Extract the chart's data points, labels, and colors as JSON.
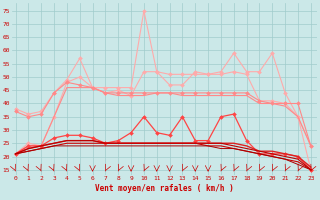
{
  "x": [
    0,
    1,
    2,
    3,
    4,
    5,
    6,
    7,
    8,
    9,
    10,
    11,
    12,
    13,
    14,
    15,
    16,
    17,
    18,
    19,
    20,
    21,
    22,
    23
  ],
  "background_color": "#cbe8e8",
  "grid_color": "#a0cccc",
  "xlabel": "Vent moyen/en rafales ( km/h )",
  "xlabel_color": "#cc0000",
  "yticks": [
    15,
    20,
    25,
    30,
    35,
    40,
    45,
    50,
    55,
    60,
    65,
    70,
    75
  ],
  "ylim": [
    13,
    78
  ],
  "xlim": [
    -0.3,
    23.5
  ],
  "series": [
    {
      "name": "rafales_envelope",
      "color": "#ffaaaa",
      "lw": 0.8,
      "marker": "D",
      "markersize": 2,
      "data": [
        38,
        36,
        37,
        44,
        49,
        57,
        46,
        46,
        46,
        46,
        75,
        52,
        47,
        47,
        52,
        51,
        52,
        59,
        52,
        52,
        59,
        44,
        35,
        15
      ]
    },
    {
      "name": "rafales_lower",
      "color": "#ffaaaa",
      "lw": 0.8,
      "marker": "D",
      "markersize": 2,
      "data": [
        21,
        25,
        24,
        35,
        48,
        50,
        46,
        44,
        45,
        43,
        52,
        52,
        51,
        51,
        51,
        51,
        51,
        52,
        51,
        41,
        41,
        40,
        35,
        24
      ]
    },
    {
      "name": "mid_upper",
      "color": "#ff8888",
      "lw": 0.8,
      "marker": "D",
      "markersize": 2,
      "data": [
        37,
        35,
        36,
        44,
        48,
        47,
        46,
        44,
        44,
        44,
        44,
        44,
        44,
        44,
        44,
        44,
        44,
        44,
        44,
        41,
        40,
        40,
        40,
        24
      ]
    },
    {
      "name": "mid_lower",
      "color": "#ff8888",
      "lw": 0.8,
      "marker": null,
      "data": [
        21,
        24,
        24,
        35,
        46,
        46,
        46,
        44,
        43,
        43,
        43,
        44,
        44,
        43,
        43,
        43,
        43,
        43,
        43,
        40,
        40,
        39,
        35,
        24
      ]
    },
    {
      "name": "mean_with_markers",
      "color": "#ff4444",
      "lw": 0.9,
      "marker": "D",
      "markersize": 2,
      "data": [
        21,
        24,
        24,
        27,
        28,
        28,
        27,
        25,
        26,
        29,
        35,
        29,
        28,
        35,
        26,
        26,
        35,
        36,
        26,
        21,
        21,
        21,
        20,
        15
      ]
    },
    {
      "name": "mean_smooth_red",
      "color": "#dd2222",
      "lw": 1.0,
      "marker": null,
      "data": [
        21,
        23,
        24,
        25,
        26,
        26,
        26,
        25,
        25,
        25,
        25,
        25,
        25,
        25,
        25,
        25,
        25,
        25,
        24,
        22,
        22,
        21,
        20,
        16
      ]
    },
    {
      "name": "mean_dark1",
      "color": "#bb0000",
      "lw": 0.8,
      "marker": null,
      "data": [
        21,
        23,
        24,
        25,
        26,
        26,
        26,
        25,
        25,
        25,
        25,
        25,
        25,
        25,
        25,
        25,
        25,
        24,
        23,
        22,
        21,
        20,
        19,
        15
      ]
    },
    {
      "name": "mean_dark2",
      "color": "#cc0000",
      "lw": 0.8,
      "marker": null,
      "data": [
        21,
        22,
        23,
        24,
        25,
        25,
        25,
        25,
        25,
        25,
        25,
        25,
        25,
        25,
        25,
        24,
        24,
        23,
        22,
        21,
        20,
        19,
        18,
        15
      ]
    },
    {
      "name": "mean_dark3",
      "color": "#aa0000",
      "lw": 0.7,
      "marker": null,
      "data": [
        21,
        22,
        23,
        24,
        24,
        24,
        24,
        24,
        24,
        24,
        24,
        24,
        24,
        24,
        24,
        24,
        23,
        23,
        22,
        21,
        20,
        19,
        17,
        15
      ]
    }
  ],
  "arrows": {
    "y_data": 14.5,
    "color": "#cc0000",
    "directions": [
      45,
      45,
      45,
      45,
      45,
      45,
      0,
      315,
      315,
      0,
      315,
      0,
      0,
      315,
      0,
      0,
      315,
      315,
      315,
      315,
      315,
      315,
      315,
      315
    ]
  }
}
